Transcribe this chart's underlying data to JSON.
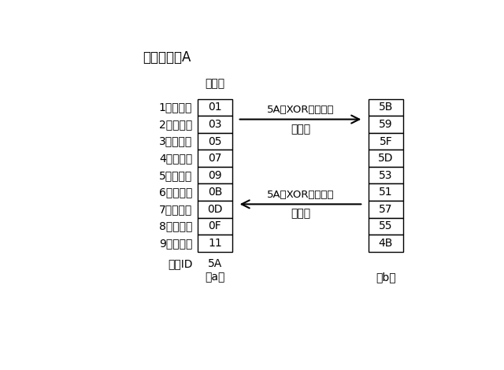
{
  "title": "演算パターA",
  "example_label": "（例）",
  "row_labels": [
    "1バイト目",
    "2バイト目",
    "3バイト目",
    "4バイト目",
    "5バイト目",
    "6バイト目",
    "7バイト目",
    "8バイト目",
    "9バイト目"
  ],
  "col_a_values": [
    "01",
    "03",
    "05",
    "07",
    "09",
    "0B",
    "0D",
    "0F",
    "11"
  ],
  "col_b_values": [
    "5B",
    "59",
    "5F",
    "5D",
    "53",
    "51",
    "57",
    "55",
    "4B"
  ],
  "machine_id_label": "機種ID",
  "machine_id_value": "5A",
  "label_a": "（a）",
  "label_b": "（b）",
  "arrow_enc_line1": "5AとXOR論理演算",
  "arrow_enc_line2": "暗号化",
  "arrow_dec_line1": "5AとXOR論理演算",
  "arrow_dec_line2": "復号化",
  "bg_color": "#ffffff",
  "box_color": "#ffffff",
  "border_color": "#000000",
  "text_color": "#000000"
}
